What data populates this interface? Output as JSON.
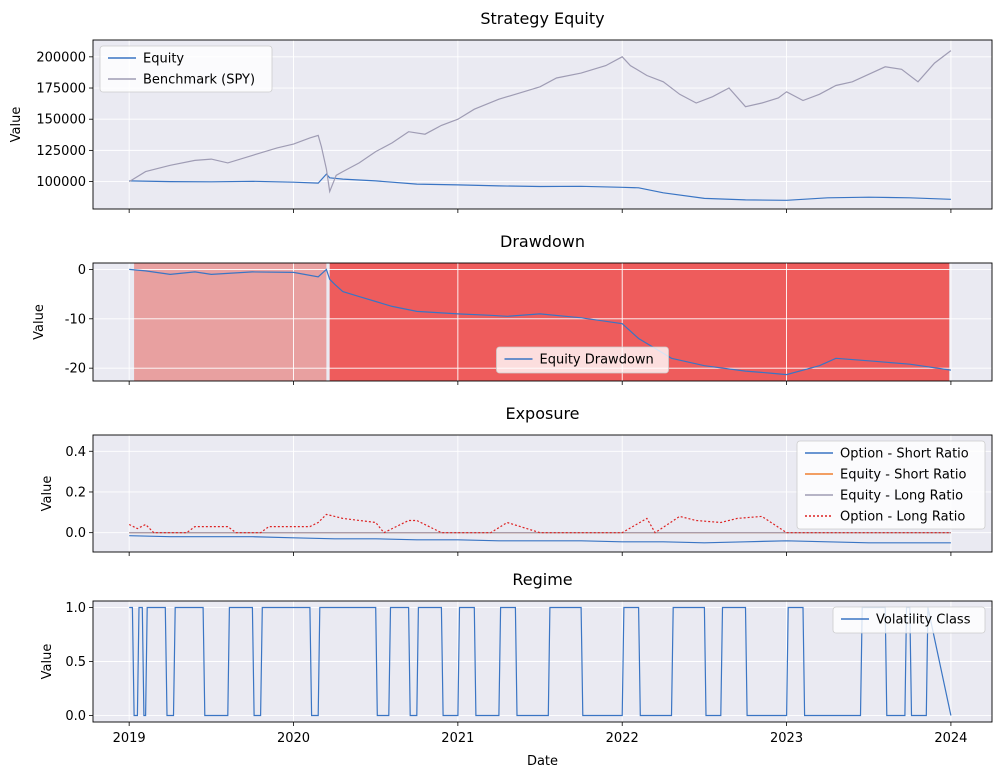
{
  "figure": {
    "xlabel": "Date",
    "x_ticks": [
      "2019",
      "2020",
      "2021",
      "2022",
      "2023",
      "2024"
    ]
  },
  "chart_data": [
    {
      "type": "line",
      "title": "Strategy Equity",
      "xlabel": "",
      "ylabel": "Value",
      "xlim": [
        2018.78,
        2024.25
      ],
      "ylim": [
        78000,
        213500
      ],
      "y_ticks": [
        100000,
        125000,
        150000,
        175000,
        200000
      ],
      "grid": true,
      "legend": "top-left",
      "series": [
        {
          "name": "Equity",
          "color": "#3a75c4",
          "x": [
            2019.0,
            2019.25,
            2019.5,
            2019.75,
            2020.0,
            2020.15,
            2020.2,
            2020.22,
            2020.3,
            2020.5,
            2020.75,
            2021.0,
            2021.25,
            2021.5,
            2021.75,
            2022.0,
            2022.1,
            2022.25,
            2022.5,
            2022.75,
            2023.0,
            2023.25,
            2023.5,
            2023.75,
            2024.0
          ],
          "y": [
            100500,
            100000,
            99800,
            100200,
            99500,
            98800,
            106000,
            103000,
            102000,
            100500,
            98000,
            97300,
            96500,
            96000,
            96200,
            95400,
            95000,
            91000,
            86500,
            85300,
            85000,
            87000,
            87500,
            87000,
            85800
          ]
        },
        {
          "name": "Benchmark (SPY)",
          "color": "#9f9cb4",
          "x": [
            2019.0,
            2019.1,
            2019.25,
            2019.4,
            2019.5,
            2019.6,
            2019.75,
            2019.9,
            2020.0,
            2020.1,
            2020.15,
            2020.17,
            2020.2,
            2020.22,
            2020.26,
            2020.3,
            2020.4,
            2020.5,
            2020.6,
            2020.7,
            2020.8,
            2020.9,
            2021.0,
            2021.1,
            2021.25,
            2021.4,
            2021.5,
            2021.6,
            2021.75,
            2021.9,
            2022.0,
            2022.05,
            2022.15,
            2022.25,
            2022.35,
            2022.45,
            2022.55,
            2022.65,
            2022.75,
            2022.85,
            2022.95,
            2023.0,
            2023.1,
            2023.2,
            2023.3,
            2023.4,
            2023.5,
            2023.6,
            2023.7,
            2023.8,
            2023.9,
            2024.0
          ],
          "y": [
            100000,
            108000,
            113000,
            117000,
            118000,
            115000,
            121000,
            127000,
            130000,
            135000,
            137000,
            128000,
            110000,
            92000,
            105000,
            108000,
            115000,
            124000,
            131000,
            140000,
            138000,
            145000,
            150000,
            158000,
            166000,
            172000,
            176000,
            183000,
            187000,
            193000,
            200000,
            193000,
            185000,
            180000,
            170000,
            163000,
            168000,
            175000,
            160000,
            163000,
            167000,
            172000,
            165000,
            170000,
            177000,
            180000,
            186000,
            192000,
            190000,
            180000,
            195000,
            205000
          ]
        }
      ]
    },
    {
      "type": "line",
      "title": "Drawdown",
      "xlabel": "",
      "ylabel": "Value",
      "xlim": [
        2018.78,
        2024.25
      ],
      "ylim": [
        -22.6,
        1.3
      ],
      "y_ticks": [
        0,
        -10,
        -20
      ],
      "grid": true,
      "legend": "bottom-center",
      "shaded_regions": [
        {
          "x": [
            2019.03,
            2020.2
          ],
          "color": "#e8a0a0"
        },
        {
          "x": [
            2020.22,
            2023.99
          ],
          "color": "#ee5c5c"
        }
      ],
      "series": [
        {
          "name": "Equity Drawdown",
          "color": "#3a75c4",
          "x": [
            2019.0,
            2019.1,
            2019.25,
            2019.4,
            2019.5,
            2019.75,
            2020.0,
            2020.15,
            2020.2,
            2020.22,
            2020.25,
            2020.3,
            2020.4,
            2020.5,
            2020.6,
            2020.75,
            2021.0,
            2021.2,
            2021.3,
            2021.5,
            2021.75,
            2021.9,
            2022.0,
            2022.1,
            2022.2,
            2022.3,
            2022.5,
            2022.75,
            2022.9,
            2023.0,
            2023.2,
            2023.3,
            2023.5,
            2023.75,
            2024.0
          ],
          "y": [
            0.0,
            -0.3,
            -1.0,
            -0.5,
            -1.0,
            -0.5,
            -0.6,
            -1.5,
            0.0,
            -2.0,
            -3.0,
            -4.5,
            -5.5,
            -6.5,
            -7.5,
            -8.5,
            -9.0,
            -9.3,
            -9.5,
            -9.0,
            -9.8,
            -10.5,
            -11.0,
            -14.0,
            -16.0,
            -18.0,
            -19.5,
            -20.6,
            -21.0,
            -21.3,
            -19.5,
            -18.0,
            -18.5,
            -19.2,
            -20.4
          ]
        }
      ]
    },
    {
      "type": "line",
      "title": "Exposure",
      "xlabel": "",
      "ylabel": "Value",
      "xlim": [
        2018.78,
        2024.25
      ],
      "ylim": [
        -0.095,
        0.48
      ],
      "y_ticks": [
        0.0,
        0.2,
        0.4
      ],
      "grid": true,
      "legend": "top-right",
      "series": [
        {
          "name": "Option - Short Ratio",
          "color": "#3a75c4",
          "x": [
            2019.0,
            2019.25,
            2019.5,
            2019.75,
            2020.0,
            2020.25,
            2020.5,
            2020.75,
            2021.0,
            2021.25,
            2021.5,
            2021.75,
            2022.0,
            2022.25,
            2022.5,
            2022.75,
            2023.0,
            2023.25,
            2023.5,
            2023.75,
            2024.0
          ],
          "y": [
            -0.015,
            -0.02,
            -0.02,
            -0.02,
            -0.025,
            -0.03,
            -0.03,
            -0.035,
            -0.035,
            -0.04,
            -0.04,
            -0.04,
            -0.045,
            -0.045,
            -0.05,
            -0.045,
            -0.04,
            -0.045,
            -0.05,
            -0.05,
            -0.05
          ]
        },
        {
          "name": "Equity - Short Ratio",
          "color": "#f08030",
          "x": [
            2019.0,
            2024.0
          ],
          "y": [
            0.0,
            0.0
          ]
        },
        {
          "name": "Equity - Long Ratio",
          "color": "#9f9cb4",
          "x": [
            2019.0,
            2024.0
          ],
          "y": [
            0.0,
            0.0
          ]
        },
        {
          "name": "Option - Long Ratio",
          "color": "#dd2222",
          "x": [
            2019.0,
            2019.05,
            2019.1,
            2019.15,
            2019.2,
            2019.35,
            2019.4,
            2019.6,
            2019.65,
            2019.8,
            2019.85,
            2020.1,
            2020.15,
            2020.2,
            2020.3,
            2020.5,
            2020.55,
            2020.7,
            2020.75,
            2020.9,
            2021.0,
            2021.2,
            2021.3,
            2021.5,
            2021.6,
            2021.8,
            2022.0,
            2022.15,
            2022.2,
            2022.35,
            2022.45,
            2022.6,
            2022.7,
            2022.85,
            2023.0,
            2023.4,
            2023.5,
            2024.0
          ],
          "y": [
            0.04,
            0.02,
            0.04,
            0.0,
            0.0,
            0.0,
            0.03,
            0.03,
            0.0,
            0.0,
            0.03,
            0.03,
            0.05,
            0.09,
            0.07,
            0.05,
            0.0,
            0.06,
            0.06,
            0.0,
            0.0,
            0.0,
            0.05,
            0.0,
            0.0,
            0.0,
            0.0,
            0.07,
            0.0,
            0.08,
            0.06,
            0.05,
            0.07,
            0.08,
            0.0,
            0.0,
            0.0,
            0.0
          ]
        }
      ]
    },
    {
      "type": "line",
      "title": "Regime",
      "xlabel": "Date",
      "ylabel": "Value",
      "xlim": [
        2018.78,
        2024.25
      ],
      "ylim": [
        -0.06,
        1.06
      ],
      "y_ticks": [
        0.0,
        0.5,
        1.0
      ],
      "grid": true,
      "legend": "top-right",
      "series": [
        {
          "name": "Volatility Class",
          "color": "#3a75c4",
          "x": [
            2019.0,
            2019.02,
            2019.03,
            2019.05,
            2019.06,
            2019.08,
            2019.09,
            2019.1,
            2019.11,
            2019.22,
            2019.23,
            2019.27,
            2019.28,
            2019.45,
            2019.46,
            2019.6,
            2019.61,
            2019.75,
            2019.76,
            2019.8,
            2019.81,
            2020.1,
            2020.11,
            2020.15,
            2020.16,
            2020.5,
            2020.51,
            2020.58,
            2020.59,
            2020.7,
            2020.71,
            2020.75,
            2020.76,
            2020.9,
            2020.91,
            2021.0,
            2021.01,
            2021.1,
            2021.11,
            2021.25,
            2021.26,
            2021.35,
            2021.36,
            2021.55,
            2021.56,
            2021.75,
            2021.76,
            2022.0,
            2022.01,
            2022.1,
            2022.11,
            2022.3,
            2022.31,
            2022.5,
            2022.51,
            2022.6,
            2022.61,
            2022.75,
            2022.76,
            2023.0,
            2023.01,
            2023.1,
            2023.11,
            2023.45,
            2023.46,
            2023.6,
            2023.61,
            2023.72,
            2023.73,
            2023.75,
            2023.76,
            2023.85,
            2023.86,
            2024.0
          ],
          "y": [
            1,
            1,
            0,
            0,
            1,
            1,
            0,
            0,
            1,
            1,
            0,
            0,
            1,
            1,
            0,
            0,
            1,
            1,
            0,
            0,
            1,
            1,
            0,
            0,
            1,
            1,
            0,
            0,
            1,
            1,
            0,
            0,
            1,
            1,
            0,
            0,
            1,
            1,
            0,
            0,
            1,
            1,
            0,
            0,
            1,
            1,
            0,
            0,
            1,
            1,
            0,
            0,
            1,
            1,
            0,
            0,
            1,
            1,
            0,
            0,
            1,
            1,
            0,
            0,
            1,
            1,
            0,
            0,
            1,
            1,
            0,
            0,
            1,
            0
          ]
        }
      ]
    }
  ]
}
